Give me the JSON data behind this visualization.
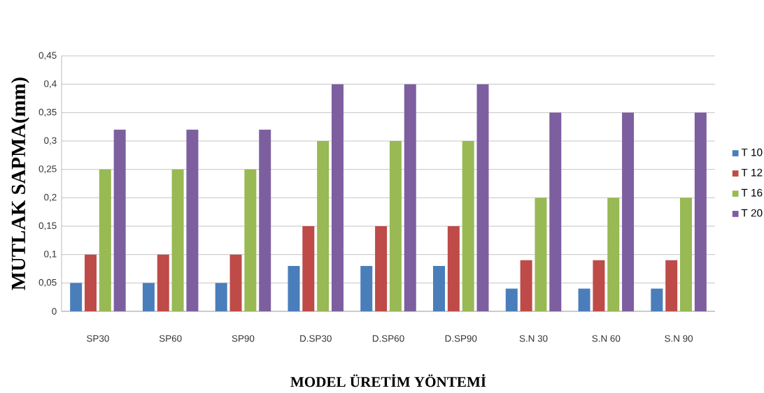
{
  "chart_data": {
    "type": "bar",
    "xlabel": "MODEL ÜRETİM YÖNTEMİ",
    "ylabel": "MUTLAK SAPMA(mm)",
    "categories": [
      "SP30",
      "SP60",
      "SP90",
      "D.SP30",
      "D.SP60",
      "D.SP90",
      "S.N 30",
      "S.N 60",
      "S.N 90"
    ],
    "series": [
      {
        "name": "T 10",
        "color": "#4a7ebb",
        "values": [
          0.05,
          0.05,
          0.05,
          0.08,
          0.08,
          0.08,
          0.04,
          0.04,
          0.04
        ]
      },
      {
        "name": "T 12",
        "color": "#be4b48",
        "values": [
          0.1,
          0.1,
          0.1,
          0.15,
          0.15,
          0.15,
          0.09,
          0.09,
          0.09
        ]
      },
      {
        "name": "T 16",
        "color": "#98b954",
        "values": [
          0.25,
          0.25,
          0.25,
          0.3,
          0.3,
          0.3,
          0.2,
          0.2,
          0.2
        ]
      },
      {
        "name": "T 20",
        "color": "#7d5fa0",
        "values": [
          0.32,
          0.32,
          0.32,
          0.4,
          0.4,
          0.4,
          0.35,
          0.35,
          0.35
        ]
      }
    ],
    "ylim": [
      0,
      0.45
    ],
    "yticks": [
      0,
      {
        "value": 0.05,
        "label": "0,05"
      },
      {
        "value": 0.1,
        "label": "0,1"
      },
      {
        "value": 0.15,
        "label": "0,15"
      },
      {
        "value": 0.2,
        "label": "0,2"
      },
      {
        "value": 0.25,
        "label": "0,25"
      },
      {
        "value": 0.3,
        "label": "0,3"
      },
      {
        "value": 0.35,
        "label": "0,35"
      },
      {
        "value": 0.4,
        "label": "0,4"
      },
      {
        "value": 0.45,
        "label": "0,45"
      }
    ],
    "grid": "y",
    "legend": "right"
  }
}
